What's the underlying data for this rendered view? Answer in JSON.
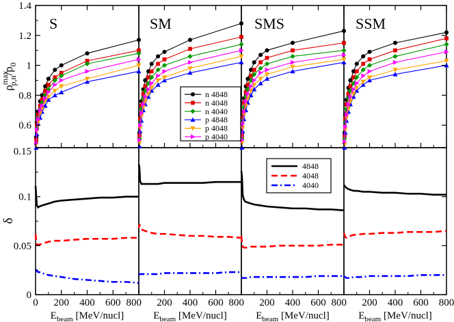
{
  "chart_data": {
    "type": "line",
    "panels": [
      "S",
      "SM",
      "SMS",
      "SSM"
    ],
    "x": [
      5,
      10,
      20,
      35,
      50,
      75,
      100,
      150,
      200,
      400,
      800
    ],
    "x_ticks": [
      0,
      200,
      400,
      600,
      800
    ],
    "x_tick_labels": [
      "0",
      "200",
      "400",
      "600",
      "800"
    ],
    "xlim": [
      0,
      800
    ],
    "xlabel": {
      "main": "E",
      "sub": "beam",
      "rest": " [MeV/nucl]"
    },
    "top": {
      "ylabel": {
        "main": "ρ",
        "sub": "p,n",
        "sup": "max",
        "rest": "/ρ",
        "sub2": "0"
      },
      "ylim": [
        0.45,
        1.4
      ],
      "y_ticks": [
        0.6,
        0.8,
        1.0,
        1.2,
        1.4
      ],
      "y_tick_labels": [
        "0.6",
        "0.8",
        "1",
        "1.2",
        "1.4"
      ],
      "legend": {
        "position": "center",
        "entries": [
          {
            "label": "n 4848",
            "color": "#000000",
            "marker": "circle"
          },
          {
            "label": "n 4048",
            "color": "#e00000",
            "marker": "square"
          },
          {
            "label": "n 4040",
            "color": "#009900",
            "marker": "diamond"
          },
          {
            "label": "p 4848",
            "color": "#0000ff",
            "marker": "triangle-up"
          },
          {
            "label": "p 4048",
            "color": "#ffa500",
            "marker": "triangle-down"
          },
          {
            "label": "p 4040",
            "color": "#ff00ff",
            "marker": "triangle-right"
          }
        ]
      },
      "series": {
        "S": [
          [
            0.52,
            0.62,
            0.69,
            0.76,
            0.8,
            0.86,
            0.91,
            0.97,
            1.0,
            1.08,
            1.17
          ],
          [
            0.5,
            0.6,
            0.67,
            0.73,
            0.77,
            0.83,
            0.87,
            0.92,
            0.95,
            1.03,
            1.1
          ],
          [
            0.48,
            0.58,
            0.65,
            0.71,
            0.75,
            0.8,
            0.84,
            0.9,
            0.93,
            1.01,
            1.08
          ],
          [
            0.45,
            0.54,
            0.61,
            0.65,
            0.69,
            0.73,
            0.77,
            0.8,
            0.82,
            0.89,
            0.96
          ],
          [
            0.47,
            0.56,
            0.62,
            0.68,
            0.71,
            0.76,
            0.79,
            0.83,
            0.86,
            0.91,
            1.0
          ],
          [
            0.48,
            0.57,
            0.64,
            0.7,
            0.73,
            0.78,
            0.82,
            0.87,
            0.9,
            0.96,
            1.04
          ]
        ],
        "SM": [
          [
            0.55,
            0.67,
            0.76,
            0.84,
            0.9,
            0.96,
            1.01,
            1.06,
            1.09,
            1.17,
            1.28
          ],
          [
            0.53,
            0.64,
            0.73,
            0.81,
            0.86,
            0.92,
            0.96,
            1.01,
            1.04,
            1.11,
            1.19
          ],
          [
            0.51,
            0.62,
            0.71,
            0.78,
            0.83,
            0.88,
            0.92,
            0.97,
            1.0,
            1.06,
            1.14
          ],
          [
            0.46,
            0.56,
            0.63,
            0.7,
            0.74,
            0.79,
            0.83,
            0.87,
            0.9,
            0.95,
            1.02
          ],
          [
            0.48,
            0.58,
            0.66,
            0.72,
            0.76,
            0.81,
            0.85,
            0.9,
            0.92,
            0.98,
            1.06
          ],
          [
            0.5,
            0.6,
            0.68,
            0.74,
            0.79,
            0.84,
            0.88,
            0.93,
            0.96,
            1.02,
            1.1
          ]
        ],
        "SMS": [
          [
            0.55,
            0.68,
            0.78,
            0.86,
            0.91,
            0.97,
            1.02,
            1.07,
            1.1,
            1.15,
            1.23
          ],
          [
            0.53,
            0.65,
            0.75,
            0.82,
            0.87,
            0.93,
            0.97,
            1.02,
            1.05,
            1.1,
            1.15
          ],
          [
            0.51,
            0.63,
            0.72,
            0.79,
            0.84,
            0.9,
            0.94,
            0.98,
            1.01,
            1.06,
            1.1
          ],
          [
            0.45,
            0.56,
            0.64,
            0.7,
            0.75,
            0.8,
            0.84,
            0.88,
            0.91,
            0.96,
            1.02
          ],
          [
            0.48,
            0.58,
            0.67,
            0.73,
            0.78,
            0.83,
            0.87,
            0.91,
            0.94,
            0.99,
            1.04
          ],
          [
            0.5,
            0.61,
            0.69,
            0.76,
            0.81,
            0.86,
            0.9,
            0.95,
            0.97,
            1.02,
            1.07
          ]
        ],
        "SSM": [
          [
            0.55,
            0.67,
            0.77,
            0.85,
            0.9,
            0.96,
            1.01,
            1.06,
            1.09,
            1.15,
            1.22
          ],
          [
            0.53,
            0.64,
            0.74,
            0.81,
            0.86,
            0.92,
            0.96,
            1.01,
            1.04,
            1.1,
            1.18
          ],
          [
            0.51,
            0.62,
            0.71,
            0.78,
            0.83,
            0.88,
            0.92,
            0.97,
            1.0,
            1.06,
            1.14
          ],
          [
            0.45,
            0.55,
            0.63,
            0.69,
            0.74,
            0.79,
            0.83,
            0.87,
            0.9,
            0.94,
            1.0
          ],
          [
            0.47,
            0.57,
            0.65,
            0.71,
            0.76,
            0.81,
            0.85,
            0.89,
            0.92,
            0.97,
            1.03
          ],
          [
            0.49,
            0.59,
            0.67,
            0.74,
            0.79,
            0.84,
            0.88,
            0.93,
            0.96,
            1.02,
            1.09
          ]
        ]
      }
    },
    "bottom": {
      "ylabel": "δ",
      "ylim": [
        0,
        0.15
      ],
      "y_ticks": [
        0,
        0.05,
        0.1,
        0.15
      ],
      "y_tick_labels": [
        "0",
        "0.05",
        "0.1",
        "0.15"
      ],
      "legend": {
        "position": "top (in SMS panel)",
        "entries": [
          {
            "label": "4848",
            "color": "#000000",
            "dash": "solid"
          },
          {
            "label": "4048",
            "color": "#ff0000",
            "dash": "dashed"
          },
          {
            "label": "4040",
            "color": "#0000ff",
            "dash": "dash-dot"
          }
        ]
      },
      "x": [
        0,
        5,
        10,
        20,
        30,
        50,
        75,
        100,
        150,
        200,
        300,
        400,
        500,
        600,
        700,
        800
      ],
      "series": {
        "S": [
          [
            0.111,
            0.1,
            0.091,
            0.089,
            0.09,
            0.091,
            0.092,
            0.093,
            0.095,
            0.096,
            0.097,
            0.098,
            0.099,
            0.099,
            0.1,
            0.1
          ],
          [
            0.062,
            0.055,
            0.051,
            0.051,
            0.051,
            0.052,
            0.053,
            0.054,
            0.055,
            0.055,
            0.056,
            0.057,
            0.057,
            0.057,
            0.058,
            0.058
          ],
          [
            0.026,
            0.025,
            0.024,
            0.023,
            0.023,
            0.022,
            0.021,
            0.02,
            0.019,
            0.018,
            0.016,
            0.015,
            0.014,
            0.013,
            0.013,
            0.012
          ]
        ],
        "SM": [
          [
            0.133,
            0.13,
            0.116,
            0.113,
            0.113,
            0.113,
            0.113,
            0.113,
            0.113,
            0.114,
            0.114,
            0.114,
            0.114,
            0.115,
            0.115,
            0.115
          ],
          [
            0.068,
            0.072,
            0.07,
            0.067,
            0.066,
            0.065,
            0.064,
            0.063,
            0.062,
            0.062,
            0.061,
            0.06,
            0.06,
            0.059,
            0.059,
            0.058
          ],
          [
            0.02,
            0.021,
            0.021,
            0.021,
            0.021,
            0.021,
            0.021,
            0.021,
            0.021,
            0.022,
            0.022,
            0.022,
            0.022,
            0.022,
            0.023,
            0.023
          ]
        ],
        "SMS": [
          [
            0.126,
            0.12,
            0.102,
            0.097,
            0.095,
            0.094,
            0.093,
            0.092,
            0.091,
            0.09,
            0.089,
            0.088,
            0.088,
            0.087,
            0.087,
            0.086
          ],
          [
            0.06,
            0.053,
            0.049,
            0.048,
            0.048,
            0.048,
            0.049,
            0.049,
            0.049,
            0.049,
            0.05,
            0.05,
            0.05,
            0.05,
            0.051,
            0.051
          ],
          [
            0.018,
            0.017,
            0.017,
            0.017,
            0.017,
            0.017,
            0.018,
            0.018,
            0.018,
            0.018,
            0.018,
            0.018,
            0.018,
            0.019,
            0.019,
            0.019
          ]
        ],
        "SSM": [
          [
            0.112,
            0.111,
            0.11,
            0.109,
            0.108,
            0.107,
            0.106,
            0.106,
            0.105,
            0.105,
            0.104,
            0.104,
            0.103,
            0.103,
            0.102,
            0.102
          ],
          [
            0.063,
            0.061,
            0.059,
            0.058,
            0.059,
            0.06,
            0.061,
            0.061,
            0.062,
            0.062,
            0.063,
            0.063,
            0.064,
            0.064,
            0.064,
            0.065
          ],
          [
            0.019,
            0.018,
            0.018,
            0.017,
            0.017,
            0.017,
            0.018,
            0.018,
            0.018,
            0.019,
            0.019,
            0.019,
            0.019,
            0.02,
            0.02,
            0.02
          ]
        ]
      }
    }
  }
}
